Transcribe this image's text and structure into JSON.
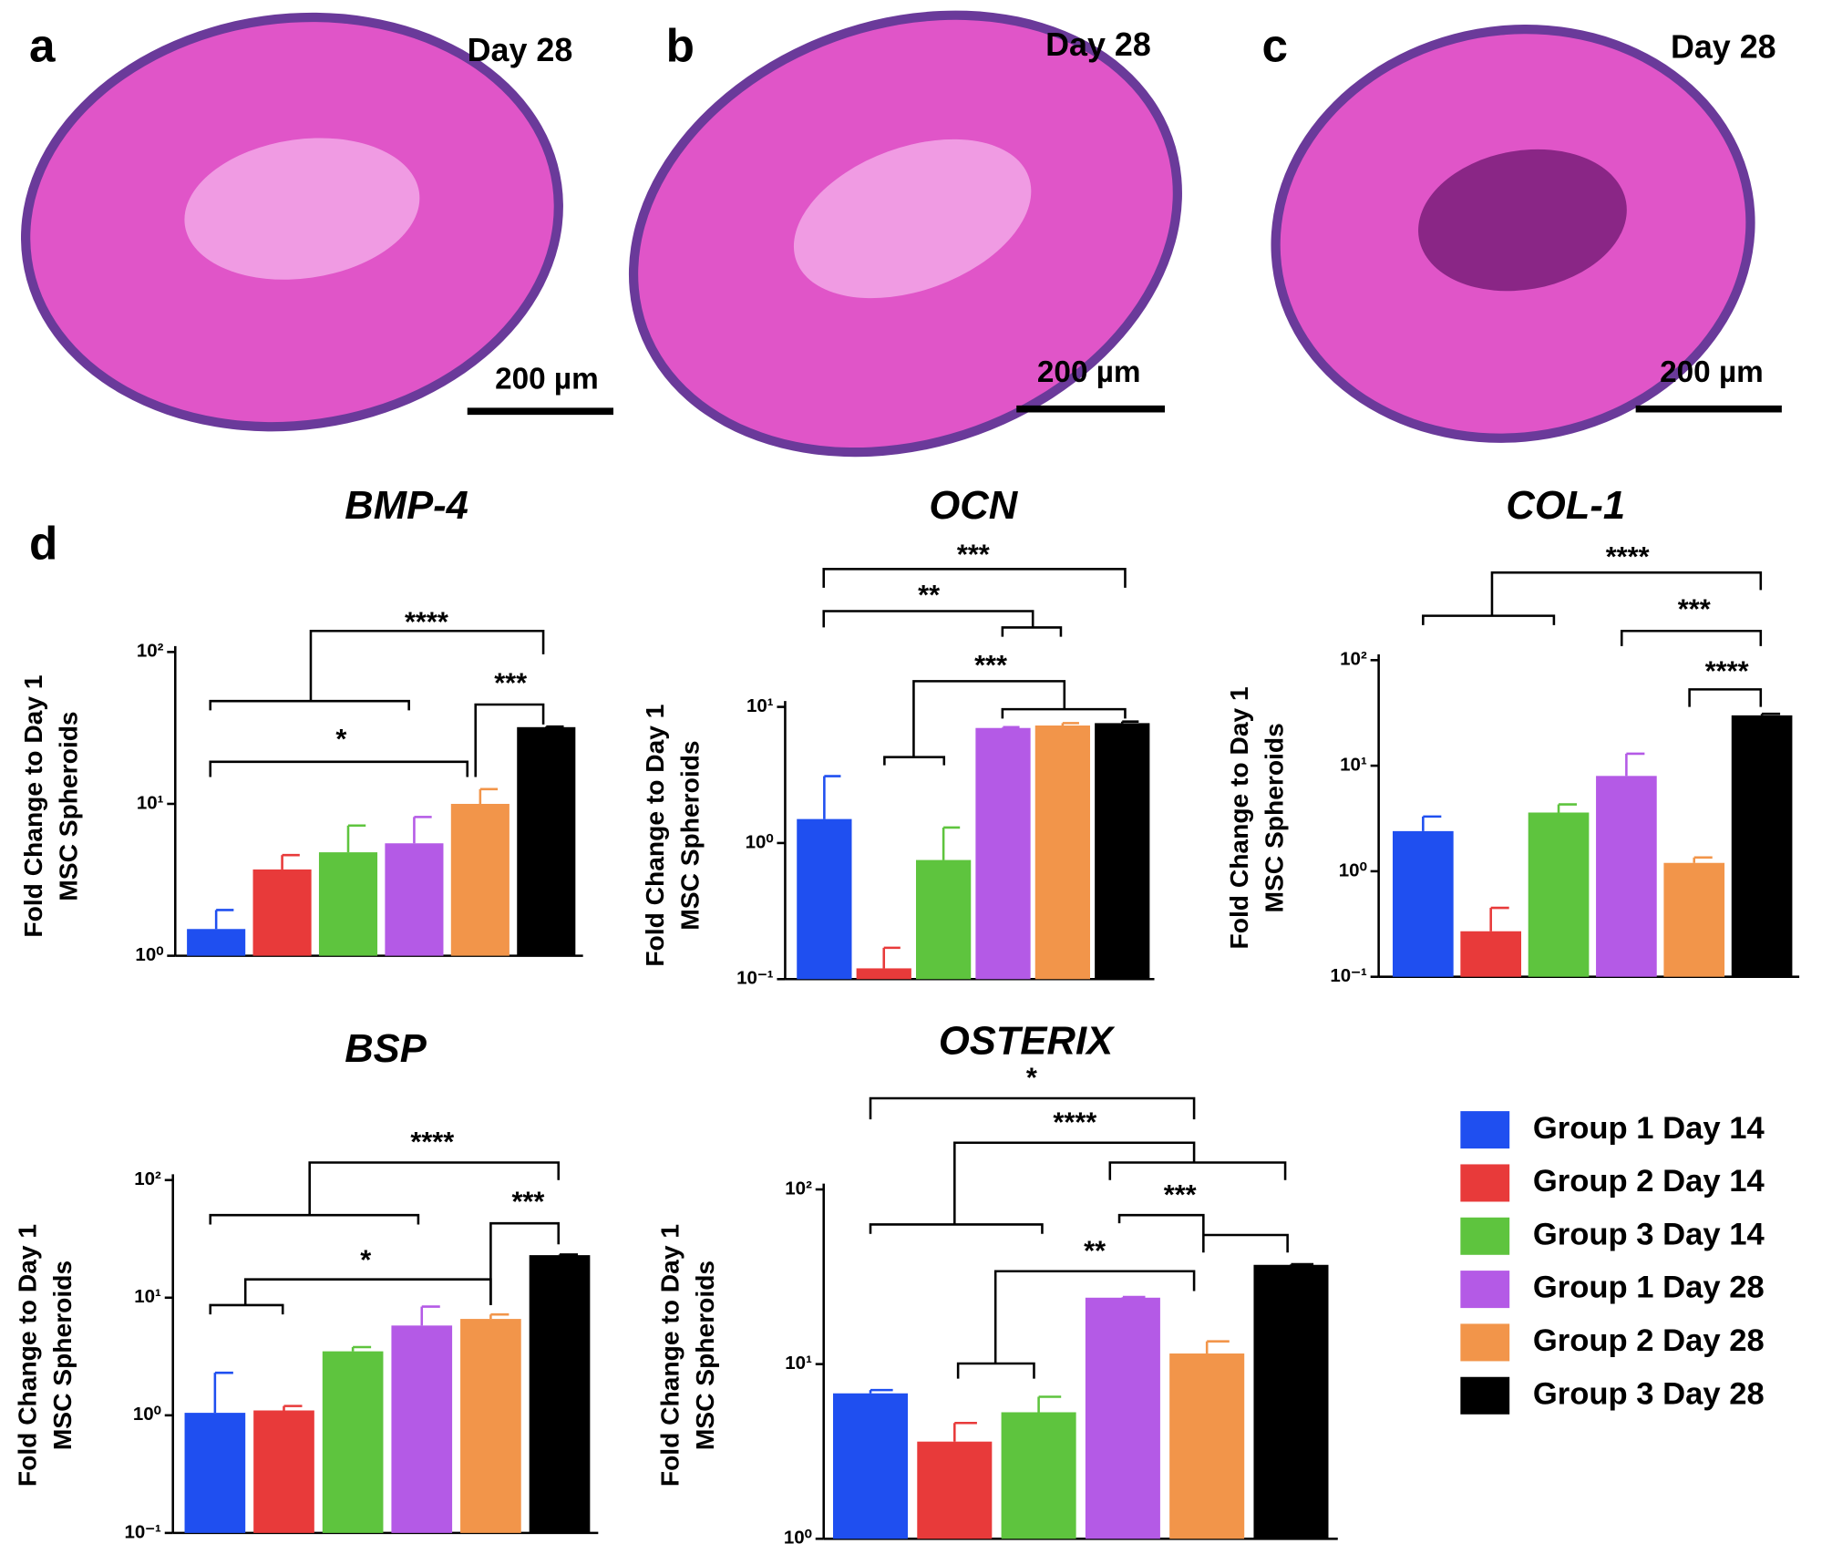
{
  "images": [
    {
      "label": "a",
      "day": "Day 28",
      "scale": "200 µm"
    },
    {
      "label": "b",
      "day": "Day 28",
      "scale": "200 µm"
    },
    {
      "label": "c",
      "day": "Day 28",
      "scale": "200 µm"
    }
  ],
  "panel_label": "d",
  "legend": [
    {
      "name": "Group 1 Day 14",
      "color": "#1f4ff0"
    },
    {
      "name": "Group 2 Day 14",
      "color": "#e83a3a"
    },
    {
      "name": "Group 3 Day 14",
      "color": "#5ec43e"
    },
    {
      "name": "Group 1 Day 28",
      "color": "#b45ae6"
    },
    {
      "name": "Group 2 Day 28",
      "color": "#f2954a"
    },
    {
      "name": "Group 3 Day 28",
      "color": "#000000"
    }
  ],
  "chart_data": [
    {
      "type": "bar",
      "title": "BMP-4",
      "ylabel": [
        "Fold Change to Day 1",
        "MSC Spheroids"
      ],
      "log": true,
      "ylim": [
        1,
        100
      ],
      "yticks": [
        {
          "value": 1,
          "label": "10⁰"
        },
        {
          "value": 10,
          "label": "10¹"
        },
        {
          "value": 100,
          "label": "10²"
        }
      ],
      "values": [
        1.5,
        3.7,
        4.8,
        5.5,
        10,
        32
      ],
      "errors": [
        0.5,
        0.9,
        2.4,
        2.7,
        2.5,
        0.3
      ],
      "annotations": [
        "****",
        "***",
        "*"
      ]
    },
    {
      "type": "bar",
      "title": "OCN",
      "ylabel": [
        "Fold Change to Day 1",
        "MSC Spheroids"
      ],
      "log": true,
      "ylim": [
        0.1,
        10
      ],
      "yticks": [
        {
          "value": 0.1,
          "label": "10⁻¹"
        },
        {
          "value": 1,
          "label": "10⁰"
        },
        {
          "value": 10,
          "label": "10¹"
        }
      ],
      "values": [
        1.5,
        0.12,
        0.75,
        7.0,
        7.3,
        7.6
      ],
      "errors": [
        1.6,
        0.05,
        0.55,
        0.1,
        0.3,
        0.2
      ],
      "annotations": [
        "***",
        "**",
        "***"
      ]
    },
    {
      "type": "bar",
      "title": "COL-1",
      "ylabel": [
        "Fold Change to Day 1",
        "MSC Spheroids"
      ],
      "log": true,
      "ylim": [
        0.1,
        100
      ],
      "yticks": [
        {
          "value": 0.1,
          "label": "10⁻¹"
        },
        {
          "value": 1,
          "label": "10⁰"
        },
        {
          "value": 10,
          "label": "10¹"
        },
        {
          "value": 100,
          "label": "10²"
        }
      ],
      "values": [
        2.4,
        0.27,
        3.6,
        8,
        1.2,
        30
      ],
      "errors": [
        0.9,
        0.18,
        0.7,
        5,
        0.15,
        1
      ],
      "annotations": [
        "****",
        "***",
        "****"
      ]
    },
    {
      "type": "bar",
      "title": "BSP",
      "ylabel": [
        "Fold Change to Day 1",
        "MSC Spheroids"
      ],
      "log": true,
      "ylim": [
        0.1,
        100
      ],
      "yticks": [
        {
          "value": 0.1,
          "label": "10⁻¹"
        },
        {
          "value": 1,
          "label": "10⁰"
        },
        {
          "value": 10,
          "label": "10¹"
        },
        {
          "value": 100,
          "label": "10²"
        }
      ],
      "values": [
        1.05,
        1.1,
        3.5,
        5.8,
        6.6,
        23
      ],
      "errors": [
        1.25,
        0.1,
        0.3,
        2.6,
        0.6,
        0.3
      ],
      "annotations": [
        "****",
        "***",
        "*"
      ]
    },
    {
      "type": "bar",
      "title": "OSTERIX",
      "ylabel": [
        "Fold Change to Day 1",
        "MSC Spheroids"
      ],
      "log": true,
      "ylim": [
        1,
        100
      ],
      "yticks": [
        {
          "value": 1,
          "label": "10⁰"
        },
        {
          "value": 10,
          "label": "10¹"
        },
        {
          "value": 100,
          "label": "10²"
        }
      ],
      "values": [
        6.8,
        3.6,
        5.3,
        24,
        11.5,
        37
      ],
      "errors": [
        0.3,
        1.0,
        1.2,
        0.2,
        2,
        0.3
      ],
      "annotations": [
        "*",
        "****",
        "***",
        "**"
      ]
    }
  ]
}
